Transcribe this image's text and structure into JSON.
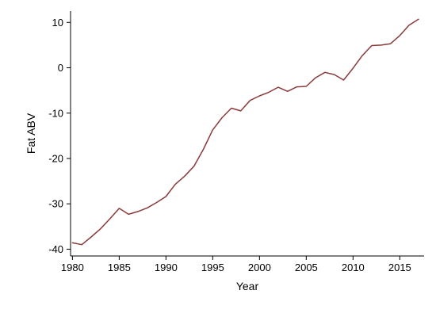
{
  "chart_data": {
    "type": "line",
    "title": "",
    "xlabel": "Year",
    "ylabel": "Fat ABV",
    "xlim": [
      1979.8,
      2017.6
    ],
    "ylim": [
      -41.5,
      12.5
    ],
    "x_ticks": [
      1980,
      1985,
      1990,
      1995,
      2000,
      2005,
      2010,
      2015
    ],
    "y_ticks": [
      10,
      0,
      -10,
      -20,
      -30,
      -40
    ],
    "grid": false,
    "legend": "none",
    "series": [
      {
        "color": "#8b3a3a",
        "x": [
          1980,
          1981,
          1982,
          1983,
          1984,
          1985,
          1986,
          1987,
          1988,
          1989,
          1990,
          1991,
          1992,
          1993,
          1994,
          1995,
          1996,
          1997,
          1998,
          1999,
          2000,
          2001,
          2002,
          2003,
          2004,
          2005,
          2006,
          2007,
          2008,
          2009,
          2010,
          2011,
          2012,
          2013,
          2014,
          2015,
          2016,
          2017
        ],
        "values": [
          -38.6,
          -39.0,
          -37.3,
          -35.5,
          -33.3,
          -31.0,
          -32.3,
          -31.7,
          -30.9,
          -29.7,
          -28.4,
          -25.7,
          -23.9,
          -21.7,
          -18.0,
          -13.7,
          -11.0,
          -8.9,
          -9.5,
          -7.2,
          -6.2,
          -5.4,
          -4.3,
          -5.2,
          -4.2,
          -4.1,
          -2.2,
          -1.0,
          -1.5,
          -2.7,
          -0.1,
          2.7,
          4.9,
          5.0,
          5.3,
          7.1,
          9.4,
          10.7
        ]
      }
    ]
  }
}
